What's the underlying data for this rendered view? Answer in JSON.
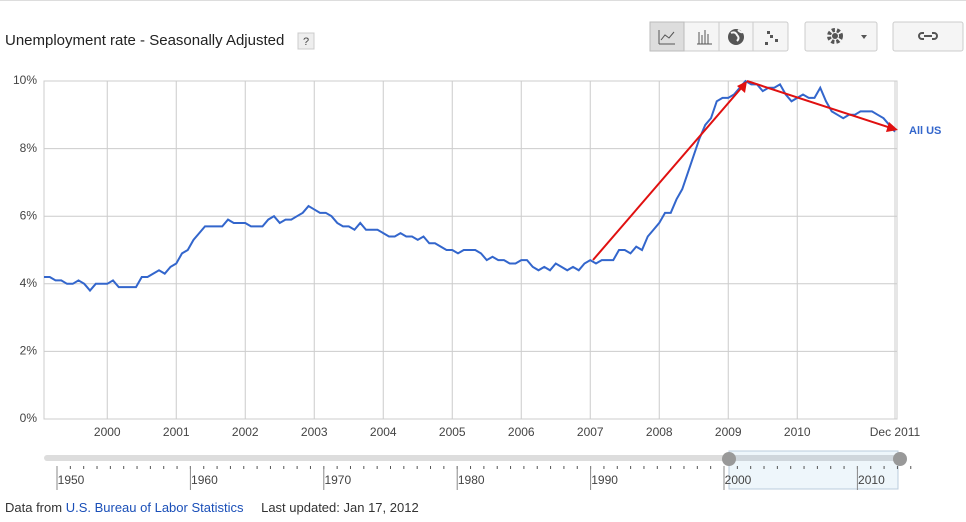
{
  "chart_data": {
    "type": "line",
    "title": "Unemployment rate - Seasonally Adjusted",
    "help": "?",
    "x": [
      "1999-08",
      "1999-09",
      "1999-10",
      "1999-11",
      "1999-12",
      "2000-01",
      "2000-02",
      "2000-03",
      "2000-04",
      "2000-05",
      "2000-06",
      "2000-07",
      "2000-08",
      "2000-09",
      "2000-10",
      "2000-11",
      "2000-12",
      "2001-01",
      "2001-02",
      "2001-03",
      "2001-04",
      "2001-05",
      "2001-06",
      "2001-07",
      "2001-08",
      "2001-09",
      "2001-10",
      "2001-11",
      "2001-12",
      "2002-01",
      "2002-02",
      "2002-03",
      "2002-04",
      "2002-05",
      "2002-06",
      "2002-07",
      "2002-08",
      "2002-09",
      "2002-10",
      "2002-11",
      "2002-12",
      "2003-01",
      "2003-02",
      "2003-03",
      "2003-04",
      "2003-05",
      "2003-06",
      "2003-07",
      "2003-08",
      "2003-09",
      "2003-10",
      "2003-11",
      "2003-12",
      "2004-01",
      "2004-02",
      "2004-03",
      "2004-04",
      "2004-05",
      "2004-06",
      "2004-07",
      "2004-08",
      "2004-09",
      "2004-10",
      "2004-11",
      "2004-12",
      "2005-01",
      "2005-02",
      "2005-03",
      "2005-04",
      "2005-05",
      "2005-06",
      "2005-07",
      "2005-08",
      "2005-09",
      "2005-10",
      "2005-11",
      "2005-12",
      "2006-01",
      "2006-02",
      "2006-03",
      "2006-04",
      "2006-05",
      "2006-06",
      "2006-07",
      "2006-08",
      "2006-09",
      "2006-10",
      "2006-11",
      "2006-12",
      "2007-01",
      "2007-02",
      "2007-03",
      "2007-04",
      "2007-05",
      "2007-06",
      "2007-07",
      "2007-08",
      "2007-09",
      "2007-10",
      "2007-11",
      "2007-12",
      "2008-01",
      "2008-02",
      "2008-03",
      "2008-04",
      "2008-05",
      "2008-06",
      "2008-07",
      "2008-08",
      "2008-09",
      "2008-10",
      "2008-11",
      "2008-12",
      "2009-01",
      "2009-02",
      "2009-03",
      "2009-04",
      "2009-05",
      "2009-06",
      "2009-07",
      "2009-08",
      "2009-09",
      "2009-10",
      "2009-11",
      "2009-12",
      "2010-01",
      "2010-02",
      "2010-03",
      "2010-04",
      "2010-05",
      "2010-06",
      "2010-07",
      "2010-08",
      "2010-09",
      "2010-10",
      "2010-11",
      "2010-12",
      "2011-01",
      "2011-02",
      "2011-03",
      "2011-04",
      "2011-05",
      "2011-06",
      "2011-07",
      "2011-08",
      "2011-09",
      "2011-10",
      "2011-11",
      "2011-12"
    ],
    "series": [
      {
        "name": "All US",
        "color": "#3366cc",
        "values": [
          4.2,
          4.2,
          4.1,
          4.1,
          4.0,
          4.0,
          4.1,
          4.0,
          3.8,
          4.0,
          4.0,
          4.0,
          4.1,
          3.9,
          3.9,
          3.9,
          3.9,
          4.2,
          4.2,
          4.3,
          4.4,
          4.3,
          4.5,
          4.6,
          4.9,
          5.0,
          5.3,
          5.5,
          5.7,
          5.7,
          5.7,
          5.7,
          5.9,
          5.8,
          5.8,
          5.8,
          5.7,
          5.7,
          5.7,
          5.9,
          6.0,
          5.8,
          5.9,
          5.9,
          6.0,
          6.1,
          6.3,
          6.2,
          6.1,
          6.1,
          6.0,
          5.8,
          5.7,
          5.7,
          5.6,
          5.8,
          5.6,
          5.6,
          5.6,
          5.5,
          5.4,
          5.4,
          5.5,
          5.4,
          5.4,
          5.3,
          5.4,
          5.2,
          5.2,
          5.1,
          5.0,
          5.0,
          4.9,
          5.0,
          5.0,
          5.0,
          4.9,
          4.7,
          4.8,
          4.7,
          4.7,
          4.6,
          4.6,
          4.7,
          4.7,
          4.5,
          4.4,
          4.5,
          4.4,
          4.6,
          4.5,
          4.4,
          4.5,
          4.4,
          4.6,
          4.7,
          4.6,
          4.7,
          4.7,
          4.7,
          5.0,
          5.0,
          4.9,
          5.1,
          5.0,
          5.4,
          5.6,
          5.8,
          6.1,
          6.1,
          6.5,
          6.8,
          7.3,
          7.8,
          8.3,
          8.7,
          8.9,
          9.4,
          9.5,
          9.5,
          9.6,
          9.8,
          10.0,
          9.9,
          9.9,
          9.7,
          9.8,
          9.8,
          9.9,
          9.6,
          9.4,
          9.5,
          9.6,
          9.5,
          9.5,
          9.8,
          9.4,
          9.1,
          9.0,
          8.9,
          9.0,
          9.0,
          9.1,
          9.1,
          9.1,
          9.0,
          8.9,
          8.7,
          8.5
        ]
      }
    ],
    "xlim": [
      "1999-08",
      "2011-12"
    ],
    "xticks": [
      {
        "value": "2000-07",
        "label": "2000"
      },
      {
        "value": "2001-07",
        "label": "2001"
      },
      {
        "value": "2002-07",
        "label": "2002"
      },
      {
        "value": "2003-07",
        "label": "2003"
      },
      {
        "value": "2004-07",
        "label": "2004"
      },
      {
        "value": "2005-07",
        "label": "2005"
      },
      {
        "value": "2006-07",
        "label": "2006"
      },
      {
        "value": "2007-07",
        "label": "2007"
      },
      {
        "value": "2008-07",
        "label": "2008"
      },
      {
        "value": "2009-07",
        "label": "2009"
      },
      {
        "value": "2010-07",
        "label": "2010"
      },
      {
        "value": "2011-12",
        "label": "Dec 2011"
      }
    ],
    "ylim": [
      0,
      10
    ],
    "yticks": [
      {
        "value": 0,
        "label": "0%"
      },
      {
        "value": 2,
        "label": "2%"
      },
      {
        "value": 4,
        "label": "4%"
      },
      {
        "value": 6,
        "label": "6%"
      },
      {
        "value": 8,
        "label": "8%"
      },
      {
        "value": 10,
        "label": "10%"
      }
    ],
    "grid": true
  },
  "timeline": {
    "labels": [
      "1950",
      "1960",
      "1970",
      "1980",
      "1990",
      "2000",
      "2010"
    ]
  },
  "footer": {
    "source_prefix": "Data from",
    "source": "U.S. Bureau of Labor Statistics",
    "updated": "Last updated: Jan 17, 2012"
  }
}
